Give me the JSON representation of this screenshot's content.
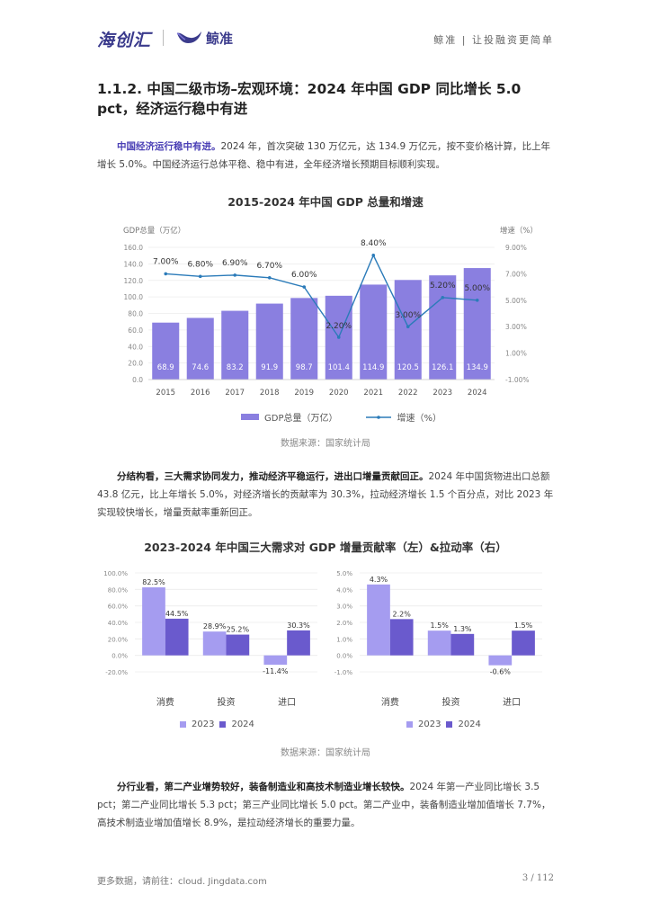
{
  "header": {
    "logo_left": "海创汇",
    "logo_right": "鲸准",
    "tagline": "鲸准 | 让投融资更简单"
  },
  "section_title": "1.1.2.  中国二级市场–宏观环境：2024 年中国 GDP 同比增长 5.0 pct，经济运行稳中有进",
  "para1": {
    "lead": "中国经济运行稳中有进。",
    "body": "2024 年，首次突破 130 万亿元，达 134.9 万亿元，按不变价格计算，比上年增长 5.0%。中国经济运行总体平稳、稳中有进，全年经济增长预期目标顺利实现。"
  },
  "para2": {
    "lead": "分结构看，三大需求协同发力，推动经济平稳运行，进出口增量贡献回正。",
    "body": "2024 年中国货物进出口总额 43.8 亿元，比上年增长 5.0%，对经济增长的贡献率为 30.3%，拉动经济增长 1.5 个百分点，对比 2023 年实现较快增长，增量贡献率重新回正。"
  },
  "para3": {
    "lead": "分行业看，第二产业增势较好，装备制造业和高技术制造业增长较快。",
    "body": "2024 年第一产业同比增长 3.5 pct；第二产业同比增长 5.3 pct；第三产业同比增长 5.0 pct。第二产业中，装备制造业增加值增长 7.7%，高技术制造业增加值增长 8.9%，是拉动经济增长的重要力量。"
  },
  "source_text": "数据来源：国家统计局",
  "footer": {
    "left": "更多数据，请前往：cloud. Jingdata.com",
    "right": "3  /  112"
  },
  "colors": {
    "bar": "#8a7fe0",
    "line": "#2b7bb9",
    "bar2023": "#a59cf0",
    "bar2024": "#6a5acd",
    "accent": "#4a3fb5"
  },
  "chart_data": [
    {
      "type": "bar",
      "title": "2015-2024 年中国  GDP 总量和增速",
      "ylabel": "GDP总量（万亿）",
      "y2label": "增速（%）",
      "categories": [
        "2015",
        "2016",
        "2017",
        "2018",
        "2019",
        "2020",
        "2021",
        "2022",
        "2023",
        "2024"
      ],
      "series": [
        {
          "name": "GDP总量（万亿）",
          "type": "bar",
          "values": [
            68.9,
            74.6,
            83.2,
            91.9,
            98.7,
            101.4,
            114.9,
            120.5,
            126.1,
            134.9
          ],
          "labels": [
            "68.9",
            "74.6",
            "83.2",
            "91.9",
            "98.7",
            "101.4",
            "114.9",
            "120.5",
            "126.1",
            "134.9"
          ]
        },
        {
          "name": "增速（%）",
          "type": "line",
          "axis": "right",
          "values": [
            7.0,
            6.8,
            6.9,
            6.7,
            6.0,
            2.2,
            8.4,
            3.0,
            5.2,
            5.0
          ],
          "labels": [
            "7.00%",
            "6.80%",
            "6.90%",
            "6.70%",
            "6.00%",
            "2.20%",
            "8.40%",
            "3.00%",
            "5.20%",
            "5.00%"
          ]
        }
      ],
      "ylim": [
        0,
        160
      ],
      "yticks": [
        "0.0",
        "20.0",
        "40.0",
        "60.0",
        "80.0",
        "100.0",
        "120.0",
        "140.0",
        "160.0"
      ],
      "y2lim": [
        -1,
        9
      ],
      "y2ticks": [
        "-1.00%",
        "1.00%",
        "3.00%",
        "5.00%",
        "7.00%",
        "9.00%"
      ],
      "legend": "bottom"
    },
    {
      "type": "bar",
      "title": "2023-2024 年中国三大需求对  GDP 增量贡献率（左）&拉动率（右）",
      "subtitle": "贡献率",
      "categories": [
        "消费",
        "投资",
        "进口"
      ],
      "series": [
        {
          "name": "2023",
          "values": [
            82.5,
            28.9,
            -11.4
          ],
          "labels": [
            "82.5%",
            "28.9%",
            "-11.4%"
          ]
        },
        {
          "name": "2024",
          "values": [
            44.5,
            25.2,
            30.3
          ],
          "labels": [
            "44.5%",
            "25.2%",
            "30.3%"
          ]
        }
      ],
      "ylim": [
        -20,
        100
      ],
      "yticks": [
        "-20.0%",
        "0.0%",
        "20.0%",
        "40.0%",
        "60.0%",
        "80.0%",
        "100.0%"
      ],
      "legend": "bottom"
    },
    {
      "type": "bar",
      "subtitle": "拉动率",
      "categories": [
        "消费",
        "投资",
        "进口"
      ],
      "series": [
        {
          "name": "2023",
          "values": [
            4.3,
            1.5,
            -0.6
          ],
          "labels": [
            "4.3%",
            "1.5%",
            "-0.6%"
          ]
        },
        {
          "name": "2024",
          "values": [
            2.2,
            1.3,
            1.5
          ],
          "labels": [
            "2.2%",
            "1.3%",
            "1.5%"
          ]
        }
      ],
      "ylim": [
        -1,
        5
      ],
      "yticks": [
        "-1.0%",
        "0.0%",
        "1.0%",
        "2.0%",
        "3.0%",
        "4.0%",
        "5.0%"
      ],
      "legend": "bottom"
    }
  ]
}
